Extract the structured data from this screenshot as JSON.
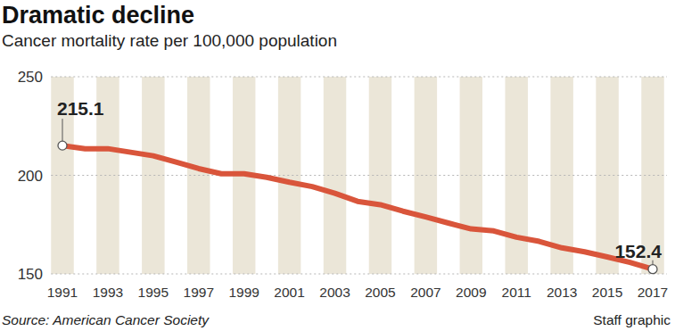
{
  "chart_data": {
    "type": "line",
    "title": "Dramatic decline",
    "subtitle": "Cancer mortality rate per 100,000 population",
    "source": "Source: American Cancer Society",
    "credit": "Staff graphic",
    "x": [
      1991,
      1992,
      1993,
      1994,
      1995,
      1996,
      1997,
      1998,
      1999,
      2000,
      2001,
      2002,
      2003,
      2004,
      2005,
      2006,
      2007,
      2008,
      2009,
      2010,
      2011,
      2012,
      2013,
      2014,
      2015,
      2016,
      2017
    ],
    "values": [
      215.1,
      213.5,
      213.5,
      211.7,
      209.9,
      206.7,
      203.4,
      200.8,
      200.8,
      199.0,
      196.5,
      194.3,
      190.9,
      186.8,
      185.1,
      181.8,
      178.9,
      175.8,
      172.8,
      171.8,
      168.6,
      166.5,
      163.2,
      161.2,
      158.6,
      155.8,
      152.4
    ],
    "color": "#d9553b",
    "xlim": [
      1991,
      2017
    ],
    "xticks": [
      1991,
      1993,
      1995,
      1997,
      1999,
      2001,
      2003,
      2005,
      2007,
      2009,
      2011,
      2013,
      2015,
      2017
    ],
    "ylim": [
      150,
      250
    ],
    "yticks": [
      150,
      200,
      250
    ],
    "grid": true,
    "annotations": [
      {
        "label": "215.1",
        "x": 1991,
        "y": 215.1
      },
      {
        "label": "152.4",
        "x": 2017,
        "y": 152.4
      }
    ]
  }
}
